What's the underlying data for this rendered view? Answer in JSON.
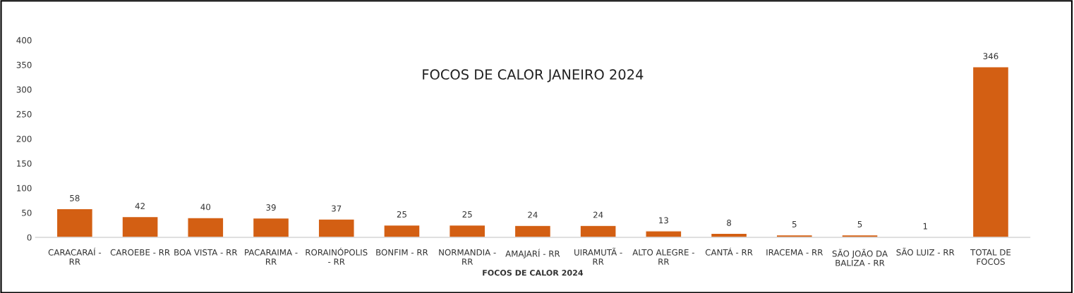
{
  "chart_data": {
    "type": "bar",
    "title": "FOCOS DE CALOR JANEIRO 2024",
    "xlabel": "FOCOS DE CALOR 2024",
    "categories": [
      "CARACARAÍ -\nRR",
      "CAROEBE - RR",
      "BOA VISTA - RR",
      "PACARAIMA -\nRR",
      "RORAINÓPOLIS\n- RR",
      "BONFIM - RR",
      "NORMANDIA -\nRR",
      "AMAJARÍ - RR",
      "UIRAMUTÃ -\nRR",
      "ALTO ALEGRE -\nRR",
      "CANTÁ - RR",
      "IRACEMA - RR",
      "SÃO JOÃO DA\nBALIZA - RR",
      "SÃO LUIZ - RR",
      "TOTAL DE\nFOCOS"
    ],
    "values": [
      58,
      42,
      40,
      39,
      37,
      25,
      25,
      24,
      24,
      13,
      8,
      5,
      5,
      1,
      346
    ],
    "color": "#d35f13",
    "data_labels": true,
    "grid": false,
    "ylim": [
      0,
      400
    ],
    "yticks": [
      0,
      50,
      100,
      150,
      200,
      250,
      300,
      350,
      400
    ]
  }
}
